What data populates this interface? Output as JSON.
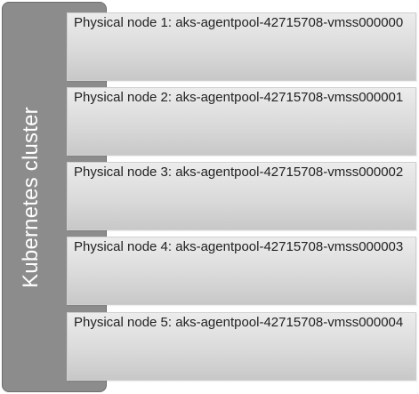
{
  "cluster": {
    "label": "Kubernetes cluster"
  },
  "nodes": [
    {
      "label": "Physical node 1: aks-agentpool-42715708-vmss000000"
    },
    {
      "label": "Physical node 2: aks-agentpool-42715708-vmss000001"
    },
    {
      "label": "Physical node 3: aks-agentpool-42715708-vmss000002"
    },
    {
      "label": "Physical node 4: aks-agentpool-42715708-vmss000003"
    },
    {
      "label": "Physical node 5: aks-agentpool-42715708-vmss000004"
    }
  ],
  "colors": {
    "cluster_fill": "#8c8c8c",
    "node_fill_top": "#ececec",
    "node_fill_bottom": "#c8c8c8",
    "label_text": "#222222",
    "cluster_text": "#ffffff"
  }
}
